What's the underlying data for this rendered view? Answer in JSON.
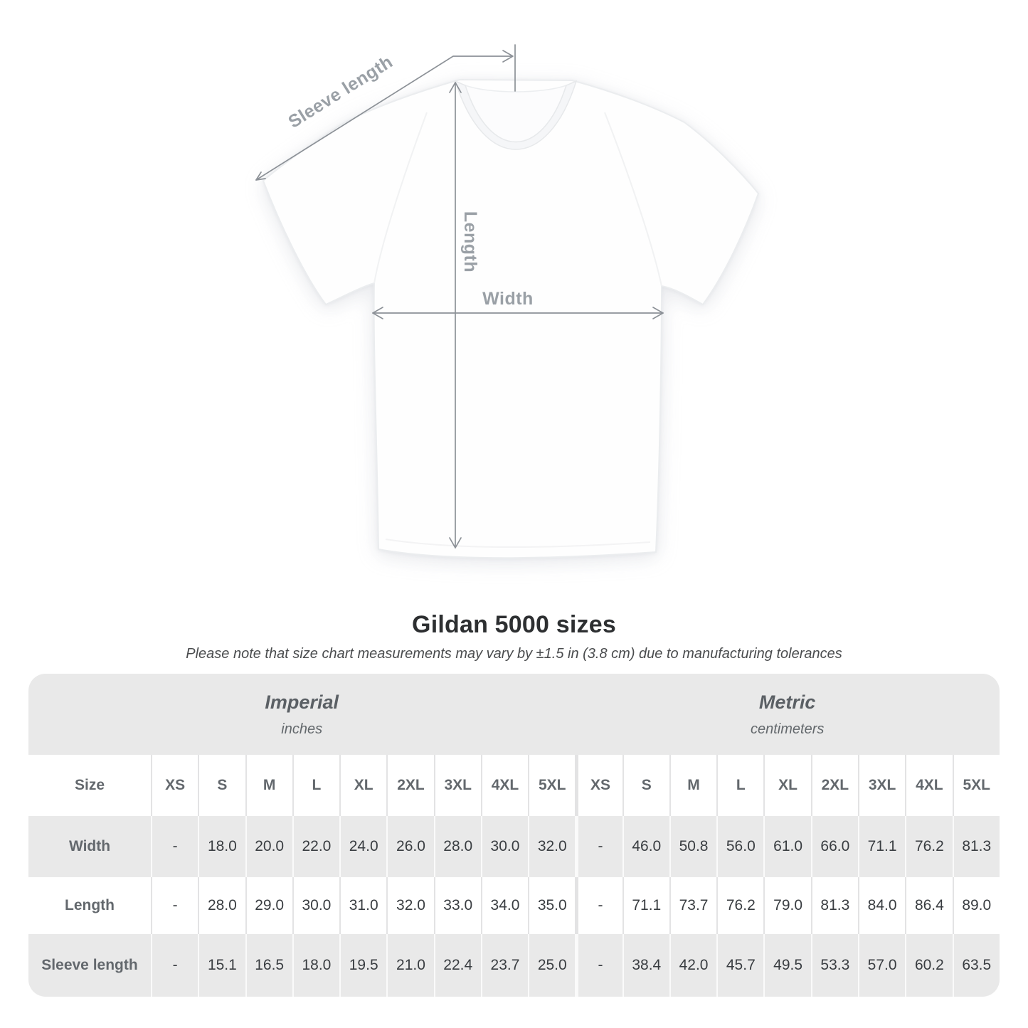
{
  "diagram": {
    "sleeve_length_label": "Sleeve length",
    "length_label": "Length",
    "width_label": "Width"
  },
  "chart_data": {
    "type": "table",
    "title": "Gildan 5000 sizes",
    "subtitle": "Please note that size chart measurements may vary by ±1.5 in (3.8 cm) due to manufacturing tolerances",
    "size_header": "Size",
    "sizes": [
      "XS",
      "S",
      "M",
      "L",
      "XL",
      "2XL",
      "3XL",
      "4XL",
      "5XL"
    ],
    "unit_groups": [
      {
        "label": "Imperial",
        "sublabel": "inches"
      },
      {
        "label": "Metric",
        "sublabel": "centimeters"
      }
    ],
    "rows": [
      {
        "label": "Width",
        "imperial": [
          "-",
          "18.0",
          "20.0",
          "22.0",
          "24.0",
          "26.0",
          "28.0",
          "30.0",
          "32.0"
        ],
        "metric": [
          "-",
          "46.0",
          "50.8",
          "56.0",
          "61.0",
          "66.0",
          "71.1",
          "76.2",
          "81.3"
        ]
      },
      {
        "label": "Length",
        "imperial": [
          "-",
          "28.0",
          "29.0",
          "30.0",
          "31.0",
          "32.0",
          "33.0",
          "34.0",
          "35.0"
        ],
        "metric": [
          "-",
          "71.1",
          "73.7",
          "76.2",
          "79.0",
          "81.3",
          "84.0",
          "86.4",
          "89.0"
        ]
      },
      {
        "label": "Sleeve length",
        "imperial": [
          "-",
          "15.1",
          "16.5",
          "18.0",
          "19.5",
          "21.0",
          "22.4",
          "23.7",
          "25.0"
        ],
        "metric": [
          "-",
          "38.4",
          "42.0",
          "45.7",
          "49.5",
          "53.3",
          "57.0",
          "60.2",
          "63.5"
        ]
      }
    ]
  },
  "colors": {
    "band": "#e9e9e9",
    "annotation": "#8c9197",
    "annotation-label": "#9aa0a6",
    "shirt-outline": "#ebedef"
  }
}
